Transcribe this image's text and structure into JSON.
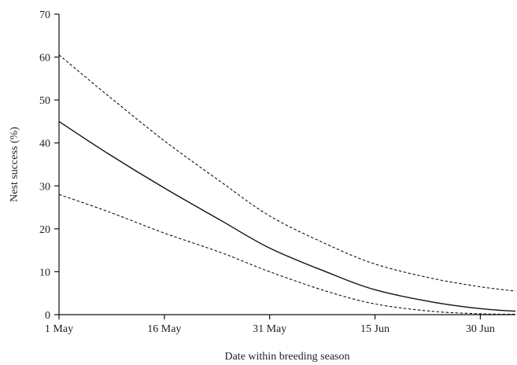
{
  "chart_data": {
    "type": "line",
    "title": "",
    "xlabel": "Date within breeding season",
    "ylabel": "Nest success (%)",
    "x_unit": "date",
    "xlim": [
      "1 May",
      "5 Jul"
    ],
    "ylim": [
      0,
      70
    ],
    "x_ticks": [
      {
        "date": "1 May",
        "label": "1 May"
      },
      {
        "date": "16 May",
        "label": "16 May"
      },
      {
        "date": "31 May",
        "label": "31 May"
      },
      {
        "date": "15 Jun",
        "label": "15 Jun"
      },
      {
        "date": "30 Jun",
        "label": "30 Jun"
      }
    ],
    "y_ticks": [
      0,
      10,
      20,
      30,
      40,
      50,
      60,
      70
    ],
    "grid": false,
    "legend": "none",
    "x": [
      "1 May",
      "8 May",
      "16 May",
      "24 May",
      "31 May",
      "8 Jun",
      "15 Jun",
      "23 Jun",
      "30 Jun",
      "5 Jul"
    ],
    "series": [
      {
        "role": "estimate",
        "style": "solid",
        "color": "#111111",
        "values": [
          45,
          37.5,
          29.5,
          22,
          15.5,
          10,
          5.8,
          3,
          1.4,
          0.8
        ]
      },
      {
        "role": "upper",
        "style": "dashed",
        "color": "#111111",
        "values": [
          60.5,
          51,
          40.5,
          31,
          23,
          16.5,
          11.8,
          8.5,
          6.5,
          5.5
        ]
      },
      {
        "role": "lower",
        "style": "dashed",
        "color": "#111111",
        "values": [
          28,
          24,
          19,
          14.5,
          10,
          5.5,
          2.5,
          0.8,
          0.2,
          0.1
        ]
      }
    ]
  }
}
